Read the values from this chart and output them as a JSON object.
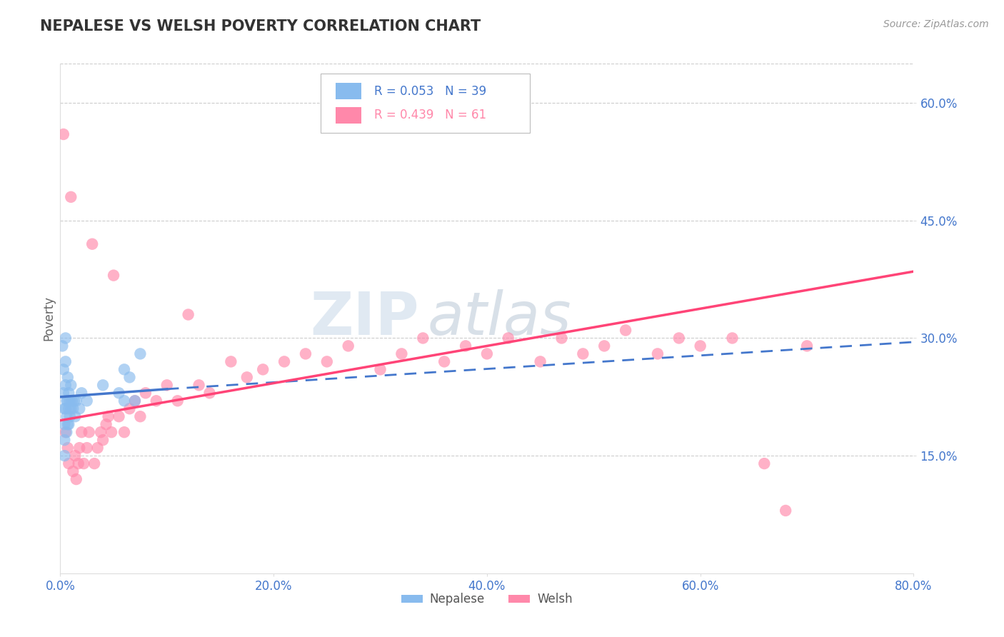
{
  "title": "NEPALESE VS WELSH POVERTY CORRELATION CHART",
  "source": "Source: ZipAtlas.com",
  "ylabel": "Poverty",
  "xlim": [
    0.0,
    0.8
  ],
  "ylim": [
    0.0,
    0.65
  ],
  "yticks": [
    0.15,
    0.3,
    0.45,
    0.6
  ],
  "ytick_labels": [
    "15.0%",
    "30.0%",
    "45.0%",
    "60.0%"
  ],
  "xticks": [
    0.0,
    0.2,
    0.4,
    0.6,
    0.8
  ],
  "xtick_labels": [
    "0.0%",
    "20.0%",
    "40.0%",
    "60.0%",
    "80.0%"
  ],
  "nepalese_R": 0.053,
  "nepalese_N": 39,
  "welsh_R": 0.439,
  "welsh_N": 61,
  "nepalese_color": "#88BBEE",
  "welsh_color": "#FF88AA",
  "nepalese_line_color": "#4477CC",
  "welsh_line_color": "#FF4477",
  "background_color": "#FFFFFF",
  "grid_color": "#CCCCCC",
  "title_color": "#333333",
  "axis_label_color": "#4477CC",
  "watermark_zip": "ZIP",
  "watermark_atlas": "atlas",
  "legend_nepalese_label": "Nepalese",
  "legend_welsh_label": "Welsh",
  "nepalese_line_start_x": 0.0,
  "nepalese_line_solid_end_x": 0.1,
  "nepalese_line_end_x": 0.8,
  "nepalese_line_start_y": 0.225,
  "nepalese_line_solid_end_y": 0.235,
  "nepalese_line_end_y": 0.295,
  "welsh_line_start_x": 0.0,
  "welsh_line_end_x": 0.8,
  "welsh_line_start_y": 0.195,
  "welsh_line_end_y": 0.385
}
